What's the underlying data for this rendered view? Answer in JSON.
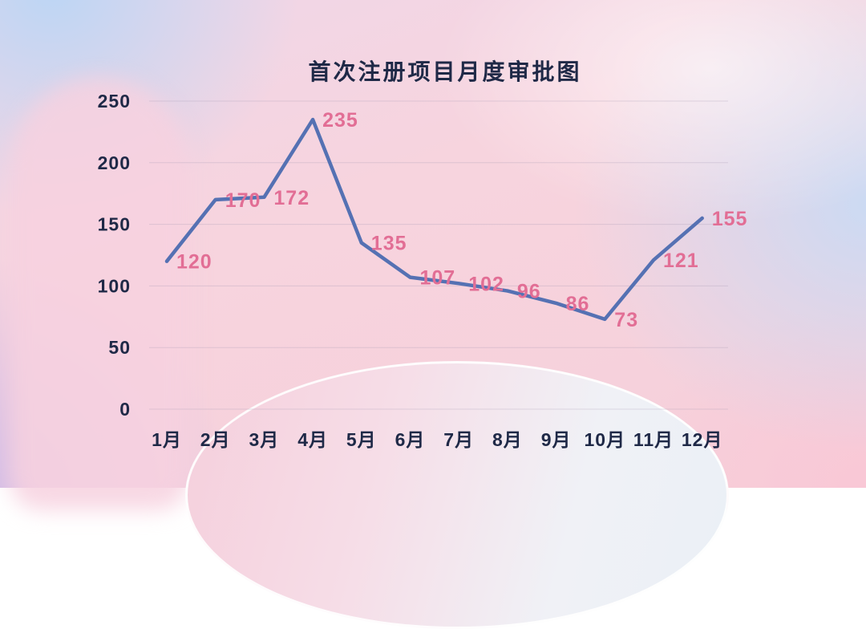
{
  "title": "首次注册项目月度审批图",
  "colors": {
    "line": "#5571b3",
    "data_label": "#e26e95",
    "axis_text": "#1f2947"
  },
  "chart_data": {
    "type": "line",
    "title": "首次注册项目月度审批图",
    "categories": [
      "1月",
      "2月",
      "3月",
      "4月",
      "5月",
      "6月",
      "7月",
      "8月",
      "9月",
      "10月",
      "11月",
      "12月"
    ],
    "values": [
      120,
      170,
      172,
      235,
      135,
      107,
      102,
      96,
      86,
      73,
      121,
      155
    ],
    "yticks": [
      0,
      50,
      100,
      150,
      200,
      250
    ],
    "ylim": [
      0,
      250
    ],
    "xlabel": "",
    "ylabel": "",
    "grid": true,
    "legend": false,
    "data_labels_shown": true
  }
}
